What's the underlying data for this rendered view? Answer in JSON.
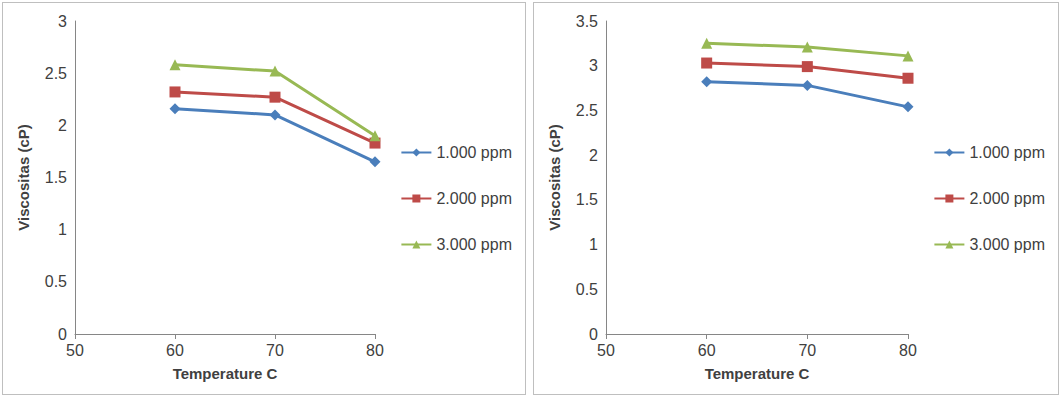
{
  "chart_data": [
    {
      "type": "line",
      "x_label": "Temperature C",
      "y_label": "Viscositas (cP)",
      "x": [
        60,
        70,
        80
      ],
      "series": [
        {
          "name": "1.000 ppm",
          "color": "#4a7ebb",
          "marker": "diamond",
          "values": [
            2.16,
            2.1,
            1.65
          ]
        },
        {
          "name": "2.000 ppm",
          "color": "#be4b48",
          "marker": "square",
          "values": [
            2.32,
            2.27,
            1.83
          ]
        },
        {
          "name": "3.000 ppm",
          "color": "#98b954",
          "marker": "triangle",
          "values": [
            2.58,
            2.52,
            1.9
          ]
        }
      ],
      "xlim": [
        50,
        80
      ],
      "xticks": [
        50,
        60,
        70,
        80
      ],
      "ylim": [
        0,
        3
      ],
      "yticks": [
        0,
        0.5,
        1,
        1.5,
        2,
        2.5,
        3
      ],
      "grid": false,
      "legend": "right"
    },
    {
      "type": "line",
      "x_label": "Temperature C",
      "y_label": "Viscositas (cP)",
      "x": [
        60,
        70,
        80
      ],
      "series": [
        {
          "name": "1.000 ppm",
          "color": "#4a7ebb",
          "marker": "diamond",
          "values": [
            2.82,
            2.78,
            2.54
          ]
        },
        {
          "name": "2.000 ppm",
          "color": "#be4b48",
          "marker": "square",
          "values": [
            3.03,
            2.99,
            2.86
          ]
        },
        {
          "name": "3.000 ppm",
          "color": "#98b954",
          "marker": "triangle",
          "values": [
            3.25,
            3.21,
            3.11
          ]
        }
      ],
      "xlim": [
        50,
        80
      ],
      "xticks": [
        50,
        60,
        70,
        80
      ],
      "ylim": [
        0,
        3.5
      ],
      "yticks": [
        0,
        0.5,
        1,
        1.5,
        2,
        2.5,
        3,
        3.5
      ],
      "grid": false,
      "legend": "right"
    }
  ]
}
